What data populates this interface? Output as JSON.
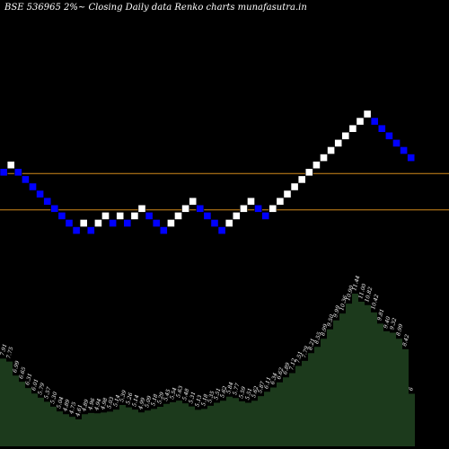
{
  "chart_data": {
    "type": "renko",
    "title": "BSE 536965 2%~  Closing Daily data  Renko  charts munafasutra.in",
    "up_color": "#ffffff",
    "down_color": "#0000ff",
    "background": "#000000",
    "ref_line_color": "#d28a1c",
    "volume_color": "#1c3a1c",
    "bricks": [
      {
        "dir": "down",
        "level": 11
      },
      {
        "dir": "up",
        "level": 12
      },
      {
        "dir": "down",
        "level": 11
      },
      {
        "dir": "down",
        "level": 10
      },
      {
        "dir": "down",
        "level": 9
      },
      {
        "dir": "down",
        "level": 8
      },
      {
        "dir": "down",
        "level": 7
      },
      {
        "dir": "down",
        "level": 6
      },
      {
        "dir": "down",
        "level": 5
      },
      {
        "dir": "down",
        "level": 4
      },
      {
        "dir": "down",
        "level": 3
      },
      {
        "dir": "up",
        "level": 4
      },
      {
        "dir": "down",
        "level": 3
      },
      {
        "dir": "up",
        "level": 4
      },
      {
        "dir": "up",
        "level": 5
      },
      {
        "dir": "down",
        "level": 4
      },
      {
        "dir": "up",
        "level": 5
      },
      {
        "dir": "down",
        "level": 4
      },
      {
        "dir": "up",
        "level": 5
      },
      {
        "dir": "up",
        "level": 6
      },
      {
        "dir": "down",
        "level": 5
      },
      {
        "dir": "down",
        "level": 4
      },
      {
        "dir": "down",
        "level": 3
      },
      {
        "dir": "up",
        "level": 4
      },
      {
        "dir": "up",
        "level": 5
      },
      {
        "dir": "up",
        "level": 6
      },
      {
        "dir": "up",
        "level": 7
      },
      {
        "dir": "down",
        "level": 6
      },
      {
        "dir": "down",
        "level": 5
      },
      {
        "dir": "down",
        "level": 4
      },
      {
        "dir": "down",
        "level": 3
      },
      {
        "dir": "up",
        "level": 4
      },
      {
        "dir": "up",
        "level": 5
      },
      {
        "dir": "up",
        "level": 6
      },
      {
        "dir": "up",
        "level": 7
      },
      {
        "dir": "down",
        "level": 6
      },
      {
        "dir": "down",
        "level": 5
      },
      {
        "dir": "up",
        "level": 6
      },
      {
        "dir": "up",
        "level": 7
      },
      {
        "dir": "up",
        "level": 8
      },
      {
        "dir": "up",
        "level": 9
      },
      {
        "dir": "up",
        "level": 10
      },
      {
        "dir": "up",
        "level": 11
      },
      {
        "dir": "up",
        "level": 12
      },
      {
        "dir": "up",
        "level": 13
      },
      {
        "dir": "up",
        "level": 14
      },
      {
        "dir": "up",
        "level": 15
      },
      {
        "dir": "up",
        "level": 16
      },
      {
        "dir": "up",
        "level": 17
      },
      {
        "dir": "up",
        "level": 18
      },
      {
        "dir": "up",
        "level": 19
      },
      {
        "dir": "down",
        "level": 18
      },
      {
        "dir": "down",
        "level": 17
      },
      {
        "dir": "down",
        "level": 16
      },
      {
        "dir": "down",
        "level": 15
      },
      {
        "dir": "down",
        "level": 14
      },
      {
        "dir": "down",
        "level": 13
      }
    ],
    "reference_levels": [
      11,
      6
    ],
    "volume_labels": [
      "7.91",
      "7.75",
      "6.99",
      "6.65",
      "6.31",
      "6.01",
      "5.79",
      "5.57",
      "5.30",
      "5.04",
      "4.89",
      "4.75",
      "4.61",
      "4.89",
      "4.96",
      "4.94",
      "4.98",
      "5.03",
      "5.14",
      "5.39",
      "5.26",
      "5.14",
      "4.99",
      "5.09",
      "5.18",
      "5.29",
      "5.45",
      "5.54",
      "5.63",
      "5.48",
      "5.31",
      "5.13",
      "5.18",
      "5.35",
      "5.51",
      "5.62",
      "5.84",
      "5.77",
      "5.59",
      "5.51",
      "5.62",
      "5.87",
      "6.11",
      "6.34",
      "6.62",
      "6.89",
      "7.12",
      "7.51",
      "7.79",
      "8.21",
      "8.55",
      "8.99",
      "9.50",
      "9.99",
      "10.36",
      "10.90",
      "11.44",
      "11.00",
      "10.82",
      "10.42",
      "9.81",
      "9.40",
      "9.32",
      "8.99",
      "8.42",
      "6"
    ]
  }
}
